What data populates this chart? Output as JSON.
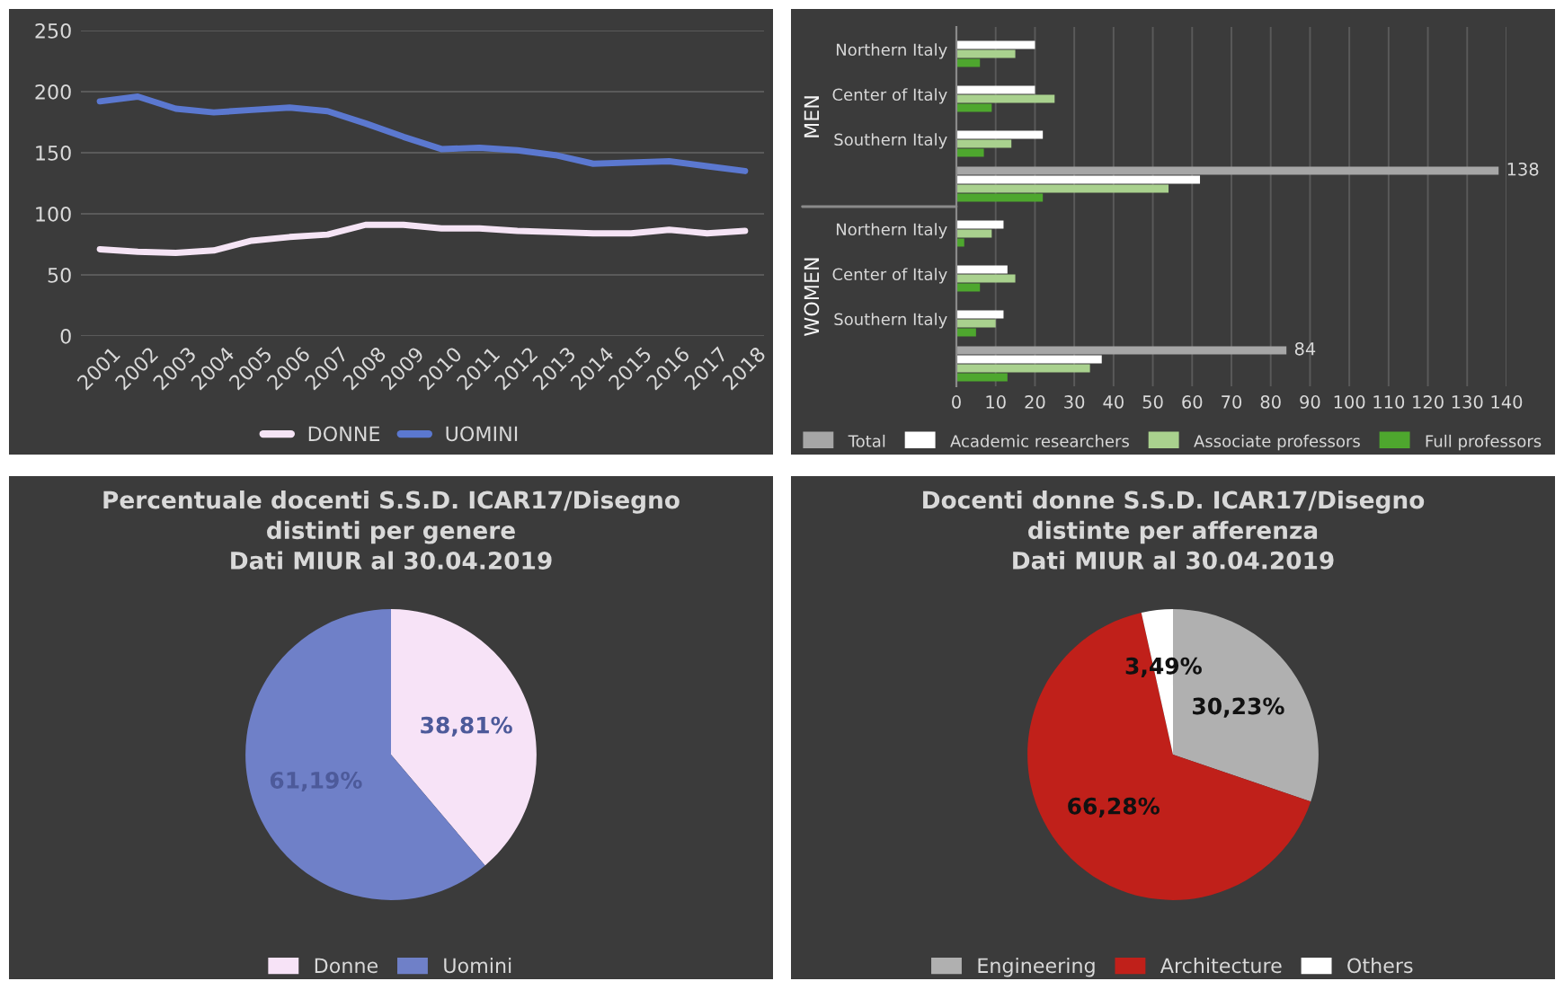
{
  "chart_data": [
    {
      "type": "line",
      "categories": [
        "2001",
        "2002",
        "2003",
        "2004",
        "2005",
        "2006",
        "2007",
        "2008",
        "2009",
        "2010",
        "2011",
        "2012",
        "2013",
        "2014",
        "2015",
        "2016",
        "2017",
        "2018"
      ],
      "ylim": [
        0,
        250
      ],
      "yticks": [
        0,
        50,
        100,
        150,
        200,
        250
      ],
      "grid": "y",
      "legend": "bottom",
      "marker": "none",
      "line_style": "solid",
      "series": [
        {
          "name": "DONNE",
          "color": "#f5e4f5",
          "values": [
            71,
            69,
            68,
            70,
            78,
            81,
            83,
            91,
            91,
            88,
            88,
            86,
            85,
            84,
            84,
            87,
            84,
            86
          ]
        },
        {
          "name": "UOMINI",
          "color": "#5b78d0",
          "values": [
            192,
            196,
            186,
            183,
            185,
            187,
            184,
            174,
            163,
            153,
            154,
            152,
            148,
            141,
            142,
            143,
            139,
            135
          ]
        }
      ]
    },
    {
      "type": "bar",
      "orientation": "horizontal",
      "categories": [
        "Northern Italy",
        "Center of Italy",
        "Southern Italy",
        null,
        "Northern Italy",
        "Center of Italy",
        "Southern Italy",
        null
      ],
      "xlim": [
        0,
        140
      ],
      "xticks": [
        0,
        10,
        20,
        30,
        40,
        50,
        60,
        70,
        80,
        90,
        100,
        110,
        120,
        130,
        140
      ],
      "grid": "x",
      "legend": "bottom",
      "annotations": [
        "MEN",
        "WOMEN"
      ],
      "series": [
        {
          "name": "Total",
          "color": "#a6a6a6",
          "values": [
            null,
            null,
            null,
            138,
            null,
            null,
            null,
            84
          ],
          "value_labels": [
            null,
            null,
            null,
            "138",
            null,
            null,
            null,
            "84"
          ]
        },
        {
          "name": "Academic researchers",
          "color": "#ffffff",
          "values": [
            20,
            20,
            22,
            62,
            12,
            13,
            12,
            37
          ]
        },
        {
          "name": "Associate professors",
          "color": "#a9d18e",
          "values": [
            15,
            25,
            14,
            54,
            9,
            15,
            10,
            34
          ]
        },
        {
          "name": "Full professors",
          "color": "#4ea72e",
          "values": [
            6,
            9,
            7,
            22,
            2,
            6,
            5,
            13
          ]
        }
      ]
    },
    {
      "type": "pie",
      "title": "Percentuale docenti S.S.D. ICAR17/Disegno\ndistinti per genere\nDati MIUR al 30.04.2019",
      "categories": [
        "Donne",
        "Uomini"
      ],
      "values": [
        38.81,
        61.19
      ],
      "colors": [
        "#f7e3f7",
        "#6f80c8"
      ],
      "value_labels": [
        "38,81%",
        "61,19%"
      ],
      "legend": "bottom"
    },
    {
      "type": "pie",
      "title": "Docenti donne S.S.D. ICAR17/Disegno\ndistinte per afferenza\nDati MIUR al 30.04.2019",
      "categories": [
        "Engineering",
        "Architecture",
        "Others"
      ],
      "values": [
        30.23,
        66.28,
        3.49
      ],
      "colors": [
        "#b0b0b0",
        "#c0201a",
        "#ffffff"
      ],
      "value_labels": [
        "30,23%",
        "66,28%",
        "3,49%"
      ],
      "legend": "bottom"
    }
  ]
}
